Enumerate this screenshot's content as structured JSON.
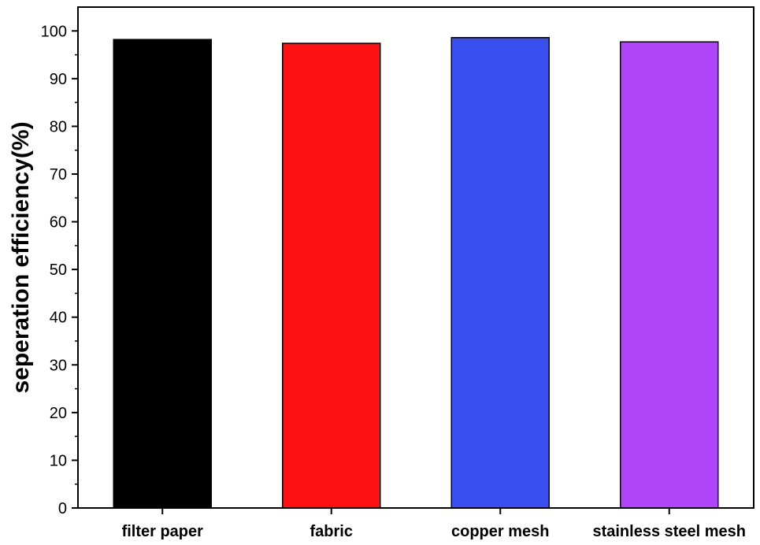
{
  "chart_data": {
    "type": "bar",
    "title": "",
    "xlabel": "",
    "ylabel": "seperation efficiency(%)",
    "categories": [
      "filter paper",
      "fabric",
      "copper mesh",
      "stainless steel mesh"
    ],
    "values": [
      98.2,
      97.4,
      98.6,
      97.7
    ],
    "colors": [
      "#000000",
      "#ff1111",
      "#3a4ff0",
      "#b044f8"
    ],
    "ylim": [
      0,
      105
    ],
    "yticks": [
      0,
      10,
      20,
      30,
      40,
      50,
      60,
      70,
      80,
      90,
      100
    ],
    "grid": false,
    "legend": "none"
  }
}
